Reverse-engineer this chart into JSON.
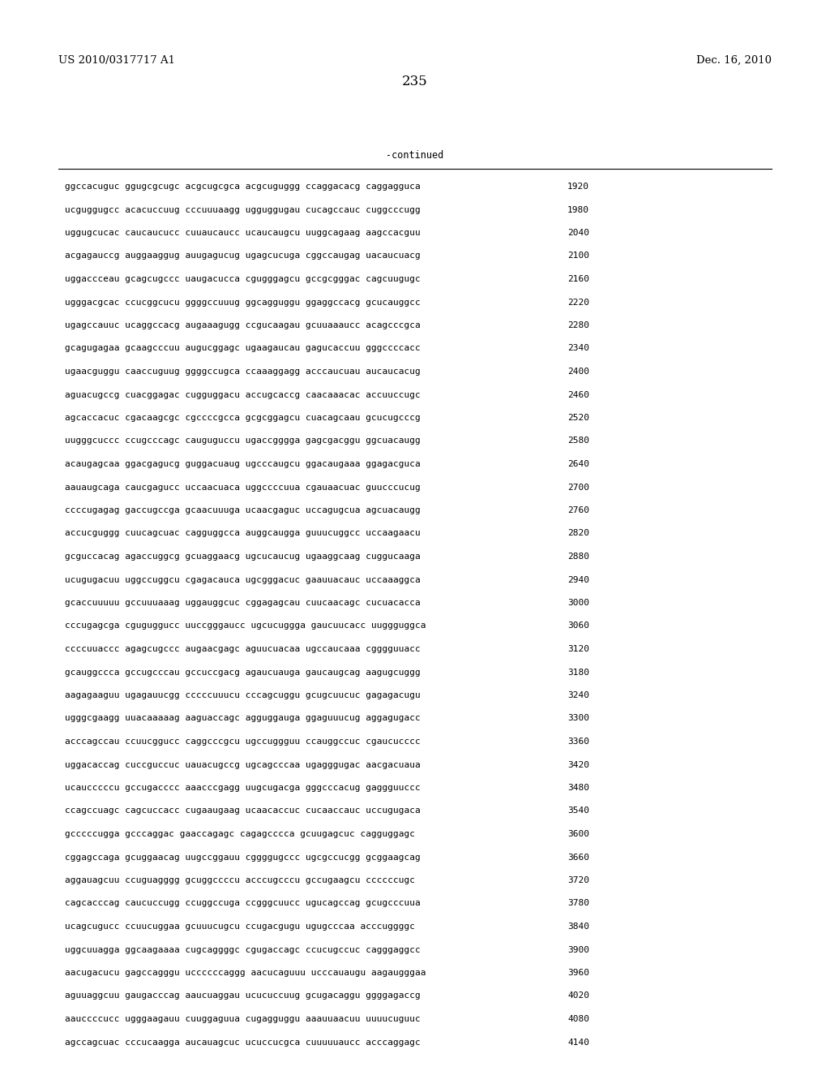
{
  "header_left": "US 2010/0317717 A1",
  "header_right": "Dec. 16, 2010",
  "page_number": "235",
  "continued_label": "-continued",
  "background_color": "#ffffff",
  "text_color": "#000000",
  "font_size_header": 9.5,
  "font_size_page": 12,
  "font_size_seq": 8.0,
  "sequence_lines": [
    {
      "seq": "ggccacuguc ggugcgcugc acgcugcgca acgcuguggg ccaggacacg caggagguca",
      "num": "1920"
    },
    {
      "seq": "ucguggugcc acacuccuug cccuuuaagg ugguggugau cucagccauc cuggcccugg",
      "num": "1980"
    },
    {
      "seq": "uggugcucac caucaucucc cuuaucaucc ucaucaugcu uuggcagaag aagccacguu",
      "num": "2040"
    },
    {
      "seq": "acgagauccg auggaaggug auugagucug ugagcucuga cggccaugag uacaucuacg",
      "num": "2100"
    },
    {
      "seq": "uggaccceau gcagcugccc uaugacucca cgugggagcu gccgcgggac cagcuugugc",
      "num": "2160"
    },
    {
      "seq": "ugggacgcac ccucggcucu ggggccuuug ggcagguggu ggaggccacg gcucauggcc",
      "num": "2220"
    },
    {
      "seq": "ugagccauuc ucaggccacg augaaagugg ccgucaagau gcuuaaaucc acagcccgca",
      "num": "2280"
    },
    {
      "seq": "gcagugagaa gcaagcccuu augucggagc ugaagaucau gagucaccuu gggccccacc",
      "num": "2340"
    },
    {
      "seq": "ugaacguggu caaccuguug ggggccugca ccaaaggagg acccaucuau aucaucacug",
      "num": "2400"
    },
    {
      "seq": "aguacugccg cuacggagac cugguggacu accugcaccg caacaaacac accuuccugc",
      "num": "2460"
    },
    {
      "seq": "agcaccacuc cgacaagcgc cgccccgcca gcgcggagcu cuacagcaau gcucugcccg",
      "num": "2520"
    },
    {
      "seq": "uugggcuccc ccugcccagc cauguguccu ugaccgggga gagcgacggu ggcuacaugg",
      "num": "2580"
    },
    {
      "seq": "acaugagcaa ggacgagucg guggacuaug ugcccaugcu ggacaugaaa ggagacguca",
      "num": "2640"
    },
    {
      "seq": "aauaugcaga caucgagucc uccaacuaca uggccccuua cgauaacuac guucccucug",
      "num": "2700"
    },
    {
      "seq": "ccccugagag gaccugccga gcaacuuuga ucaacgaguc uccagugcua agcuacaugg",
      "num": "2760"
    },
    {
      "seq": "accucguggg cuucagcuac cagguggcca auggcaugga guuucuggcc uccaagaacu",
      "num": "2820"
    },
    {
      "seq": "gcguccacag agaccuggcg gcuaggaacg ugcucaucug ugaaggcaag cuggucaaga",
      "num": "2880"
    },
    {
      "seq": "ucugugacuu uggccuggcu cgagacauca ugcgggacuc gaauuacauc uccaaaggca",
      "num": "2940"
    },
    {
      "seq": "gcaccuuuuu gccuuuaaag uggauggcuc cggagagcau cuucaacagc cucuacacca",
      "num": "3000"
    },
    {
      "seq": "cccugagcga cguguggucc uuccgggaucc ugcucuggga gaucuucacc uuggguggca",
      "num": "3060"
    },
    {
      "seq": "ccccuuaccc agagcugccc augaacgagc aguucuacaa ugccaucaaa cgggguuacc",
      "num": "3120"
    },
    {
      "seq": "gcauggccca gccugcccau gccuccgacg agaucuauga gaucaugcag aagugcuggg",
      "num": "3180"
    },
    {
      "seq": "aagagaaguu ugagauucgg cccccuuucu cccagcuggu gcugcuucuc gagagacugu",
      "num": "3240"
    },
    {
      "seq": "ugggcgaagg uuacaaaaag aaguaccagc agguggauga ggaguuucug aggagugacc",
      "num": "3300"
    },
    {
      "seq": "acccagccau ccuucggucc caggcccgcu ugccuggguu ccauggccuc cgaucucccc",
      "num": "3360"
    },
    {
      "seq": "uggacaccag cuccguccuc uauacugccg ugcagcccaa ugagggugac aacgacuaua",
      "num": "3420"
    },
    {
      "seq": "ucaucccccu gccugacccc aaacccgagg uugcugacga gggcccacug gaggguuccc",
      "num": "3480"
    },
    {
      "seq": "ccagccuagc cagcuccacc cugaaugaag ucaacaccuc cucaaccauc uccugugaca",
      "num": "3540"
    },
    {
      "seq": "gcccccugga gcccaggac gaaccagagc cagagcccca gcuugagcuc cagguggagc",
      "num": "3600"
    },
    {
      "seq": "cggagccaga gcuggaacag uugccggauu cggggugccc ugcgccucgg gcggaagcag",
      "num": "3660"
    },
    {
      "seq": "aggauagcuu ccuguagggg gcuggccccu acccugcccu gccugaagcu ccccccugc",
      "num": "3720"
    },
    {
      "seq": "cagcacccag caucuccugg ccuggccuga ccgggcuucc ugucagccag gcugcccuua",
      "num": "3780"
    },
    {
      "seq": "ucagcugucc ccuucuggaa gcuuucugcu ccugacgugu ugugcccaa acccuggggc",
      "num": "3840"
    },
    {
      "seq": "uggcuuagga ggcaagaaaa cugcaggggc cgugaccagc ccucugccuc cagggaggcc",
      "num": "3900"
    },
    {
      "seq": "aacugacucu gagccagggu uccccccaggg aacucaguuu ucccauaugu aagaugggaa",
      "num": "3960"
    },
    {
      "seq": "aguuaggcuu gaugacccag aaucuaggau ucucuccuug gcugacaggu ggggagaccg",
      "num": "4020"
    },
    {
      "seq": "aauccccucc ugggaagauu cuuggaguua cugagguggu aaauuaacuu uuuucuguuc",
      "num": "4080"
    },
    {
      "seq": "agccagcuac cccucaagga aucauagcuc ucuccucgca cuuuuuaucc acccaggagc",
      "num": "4140"
    }
  ]
}
